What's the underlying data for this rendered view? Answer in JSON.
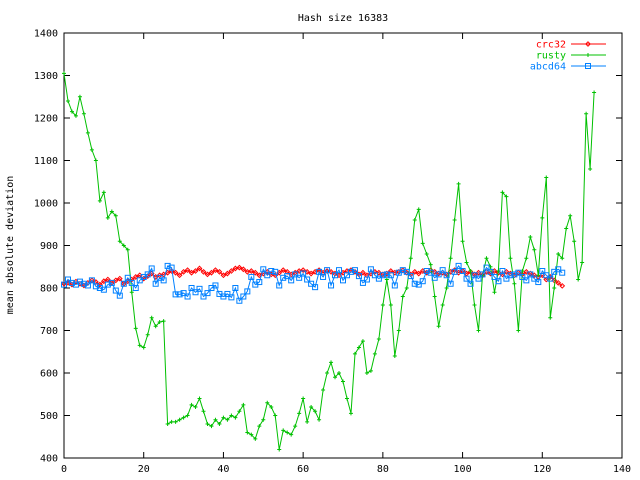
{
  "chart_data": {
    "type": "line",
    "title": "Hash size 16383",
    "xlabel": "",
    "ylabel": "mean absolute deviation",
    "xlim": [
      0,
      140
    ],
    "ylim": [
      400,
      1400
    ],
    "xticks": [
      0,
      20,
      40,
      60,
      80,
      100,
      120,
      140
    ],
    "yticks": [
      400,
      500,
      600,
      700,
      800,
      900,
      1000,
      1100,
      1200,
      1300,
      1400
    ],
    "grid": false,
    "legend_position": "top-right",
    "series": [
      {
        "name": "crc32",
        "color": "#ff0000",
        "marker": "diamond",
        "values": [
          810,
          812,
          808,
          815,
          810,
          806,
          812,
          818,
          814,
          808,
          816,
          820,
          812,
          818,
          822,
          810,
          816,
          820,
          826,
          830,
          822,
          828,
          834,
          826,
          830,
          832,
          836,
          840,
          836,
          830,
          838,
          842,
          836,
          840,
          846,
          838,
          832,
          836,
          842,
          838,
          830,
          834,
          840,
          846,
          848,
          844,
          838,
          840,
          836,
          830,
          834,
          838,
          832,
          830,
          836,
          842,
          838,
          832,
          836,
          840,
          842,
          838,
          834,
          838,
          842,
          836,
          840,
          838,
          834,
          830,
          836,
          840,
          842,
          838,
          832,
          836,
          830,
          834,
          838,
          836,
          832,
          834,
          840,
          836,
          838,
          842,
          836,
          832,
          838,
          834,
          840,
          836,
          842,
          838,
          834,
          836,
          832,
          838,
          842,
          836,
          840,
          834,
          838,
          832,
          836,
          830,
          838,
          834,
          840,
          836,
          832,
          838,
          834,
          830,
          836,
          832,
          838,
          834,
          830,
          826,
          830,
          820,
          826,
          818,
          812,
          805
        ]
      },
      {
        "name": "rusty",
        "color": "#00c000",
        "marker": "plus",
        "values": [
          1305,
          1240,
          1215,
          1205,
          1250,
          1210,
          1165,
          1125,
          1100,
          1005,
          1025,
          965,
          980,
          970,
          910,
          900,
          890,
          790,
          705,
          665,
          660,
          690,
          730,
          710,
          720,
          722,
          480,
          485,
          485,
          490,
          495,
          500,
          525,
          520,
          540,
          510,
          480,
          475,
          490,
          480,
          495,
          490,
          500,
          495,
          510,
          525,
          460,
          455,
          445,
          475,
          490,
          530,
          520,
          500,
          420,
          465,
          460,
          455,
          475,
          505,
          540,
          485,
          520,
          510,
          490,
          560,
          600,
          625,
          590,
          600,
          580,
          540,
          505,
          645,
          660,
          675,
          600,
          605,
          645,
          680,
          760,
          820,
          760,
          640,
          700,
          780,
          800,
          870,
          960,
          985,
          905,
          880,
          855,
          780,
          710,
          760,
          800,
          870,
          960,
          1045,
          910,
          860,
          840,
          760,
          700,
          830,
          870,
          850,
          790,
          840,
          1025,
          1015,
          870,
          810,
          700,
          840,
          870,
          920,
          890,
          830,
          965,
          1060,
          730,
          800,
          880,
          870,
          940,
          970,
          910,
          820,
          860,
          1210,
          1080,
          1260
        ]
      },
      {
        "name": "abcd64",
        "color": "#0080ff",
        "marker": "square",
        "values": [
          808,
          820,
          812,
          808,
          815,
          810,
          806,
          818,
          804,
          800,
          796,
          808,
          812,
          794,
          782,
          810,
          824,
          812,
          800,
          818,
          826,
          832,
          846,
          810,
          824,
          818,
          852,
          848,
          785,
          785,
          788,
          780,
          800,
          790,
          798,
          780,
          788,
          800,
          806,
          786,
          780,
          786,
          778,
          800,
          770,
          780,
          792,
          826,
          808,
          814,
          844,
          830,
          840,
          838,
          806,
          824,
          828,
          818,
          832,
          824,
          834,
          820,
          810,
          802,
          838,
          826,
          842,
          806,
          830,
          842,
          818,
          830,
          838,
          842,
          828,
          812,
          820,
          844,
          830,
          822,
          830,
          832,
          830,
          806,
          836,
          842,
          838,
          828,
          810,
          808,
          816,
          840,
          836,
          824,
          832,
          842,
          830,
          810,
          838,
          852,
          840,
          822,
          810,
          830,
          822,
          832,
          848,
          838,
          826,
          816,
          840,
          822,
          830,
          832,
          836,
          826,
          818,
          832,
          822,
          814,
          840,
          830,
          822,
          838,
          844,
          836
        ]
      }
    ]
  }
}
